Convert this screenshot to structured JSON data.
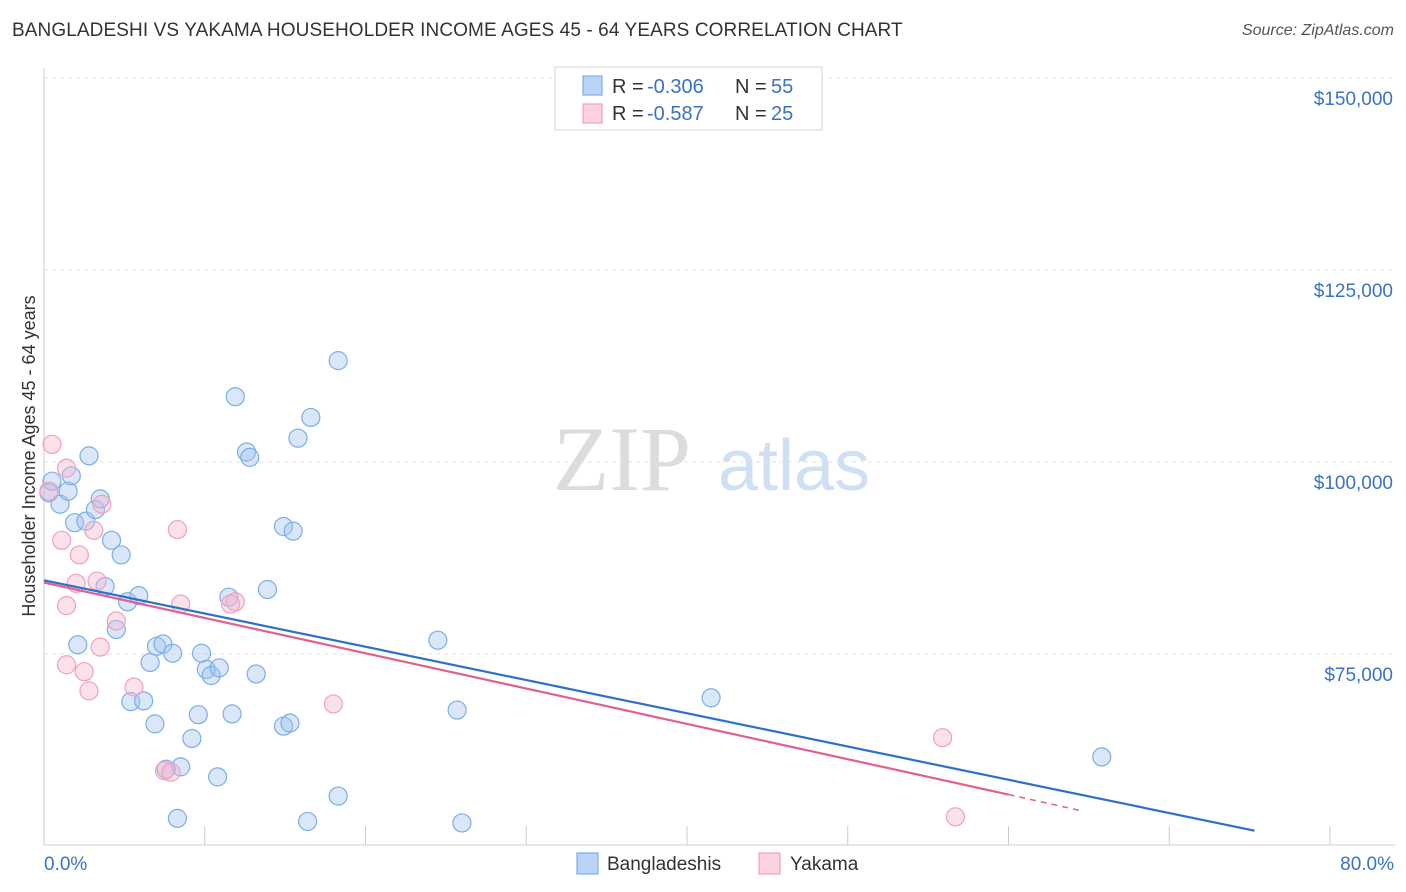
{
  "chart_data": {
    "type": "scatter",
    "title": "BANGLADESHI VS YAKAMA HOUSEHOLDER INCOME AGES 45 - 64 YEARS CORRELATION CHART",
    "source": "Source: ZipAtlas.com",
    "xlabel": "",
    "ylabel": "Householder Income Ages 45 - 64 years",
    "xlim": [
      0,
      80
    ],
    "ylim": [
      52000,
      152000
    ],
    "x_tick_labels": [
      "0.0%",
      "80.0%"
    ],
    "y_ticks": [
      150000,
      125000,
      100000,
      75000
    ],
    "y_tick_labels": [
      "$150,000",
      "$125,000",
      "$100,000",
      "$75,000"
    ],
    "grid": true,
    "watermark": {
      "zip": "ZIP",
      "atlas": "atlas"
    },
    "colors": {
      "bangladeshis": "#7aaee8",
      "yakama": "#f0a0bc",
      "bangladeshis_line": "#2f6fcc",
      "yakama_line": "#e0608e"
    },
    "legend": {
      "rows": [
        {
          "r_label": "R = ",
          "r_value": "-0.306",
          "n_label": "N = ",
          "n_value": "55"
        },
        {
          "r_label": "R = ",
          "r_value": "-0.587",
          "n_label": "N = ",
          "n_value": "25"
        }
      ],
      "bottom": [
        "Bangladeshis",
        "Yakama"
      ]
    },
    "series": [
      {
        "name": "Bangladeshis",
        "trend": {
          "x": [
            0,
            75.3
          ],
          "y": [
            84600,
            52000
          ]
        },
        "points": [
          [
            0.3,
            96
          ],
          [
            0.5,
            97.5
          ],
          [
            1.0,
            94.5
          ],
          [
            1.5,
            96.2
          ],
          [
            1.7,
            98.2
          ],
          [
            2.8,
            100.8
          ],
          [
            1.9,
            92.1
          ],
          [
            2.6,
            92.3
          ],
          [
            3.2,
            93.8
          ],
          [
            3.5,
            95.2
          ],
          [
            4.2,
            89.8
          ],
          [
            4.8,
            87.9
          ],
          [
            3.8,
            83.8
          ],
          [
            5.2,
            81.8
          ],
          [
            5.9,
            82.6
          ],
          [
            4.5,
            78.2
          ],
          [
            2.1,
            76.2
          ],
          [
            6.6,
            73.9
          ],
          [
            7.0,
            76.0
          ],
          [
            7.4,
            76.3
          ],
          [
            8.0,
            75.1
          ],
          [
            9.8,
            75.1
          ],
          [
            10.1,
            73.0
          ],
          [
            10.4,
            72.2
          ],
          [
            10.9,
            73.2
          ],
          [
            11.5,
            82.4
          ],
          [
            13.2,
            72.4
          ],
          [
            13.9,
            83.4
          ],
          [
            5.4,
            68.8
          ],
          [
            6.2,
            68.9
          ],
          [
            6.9,
            65.9
          ],
          [
            9.6,
            67.1
          ],
          [
            11.7,
            67.2
          ],
          [
            8.5,
            60.3
          ],
          [
            9.2,
            64.0
          ],
          [
            7.6,
            60.0
          ],
          [
            10.8,
            59.0
          ],
          [
            14.9,
            65.6
          ],
          [
            15.3,
            66.0
          ],
          [
            14.9,
            91.6
          ],
          [
            15.5,
            91.0
          ],
          [
            11.9,
            108.5
          ],
          [
            12.6,
            101.3
          ],
          [
            12.8,
            100.6
          ],
          [
            15.8,
            103.1
          ],
          [
            16.6,
            105.8
          ],
          [
            18.3,
            113.2
          ],
          [
            24.5,
            76.8
          ],
          [
            25.7,
            67.7
          ],
          [
            8.3,
            53.6
          ],
          [
            16.4,
            53.2
          ],
          [
            18.3,
            56.5
          ],
          [
            26.0,
            53.0
          ],
          [
            41.5,
            69.3
          ],
          [
            65.8,
            61.6
          ]
        ]
      },
      {
        "name": "Yakama",
        "trend": {
          "x": [
            0,
            60
          ],
          "y": [
            84300,
            56700
          ]
        },
        "trend_dashed": {
          "x": [
            60,
            64.5
          ],
          "y": [
            56700,
            54600
          ]
        },
        "points": [
          [
            0.5,
            102.3
          ],
          [
            0.3,
            96.2
          ],
          [
            1.1,
            89.8
          ],
          [
            1.4,
            99.2
          ],
          [
            2.2,
            87.9
          ],
          [
            3.1,
            91.1
          ],
          [
            3.6,
            94.5
          ],
          [
            2.0,
            84.2
          ],
          [
            3.3,
            84.5
          ],
          [
            1.4,
            81.3
          ],
          [
            4.5,
            79.3
          ],
          [
            1.4,
            73.6
          ],
          [
            2.5,
            72.7
          ],
          [
            2.8,
            70.2
          ],
          [
            3.5,
            75.9
          ],
          [
            5.6,
            70.7
          ],
          [
            8.5,
            81.5
          ],
          [
            11.9,
            81.8
          ],
          [
            8.3,
            91.2
          ],
          [
            11.6,
            81.5
          ],
          [
            7.5,
            59.8
          ],
          [
            7.9,
            59.6
          ],
          [
            18.0,
            68.5
          ],
          [
            55.9,
            64.1
          ],
          [
            56.7,
            53.8
          ]
        ]
      }
    ]
  }
}
